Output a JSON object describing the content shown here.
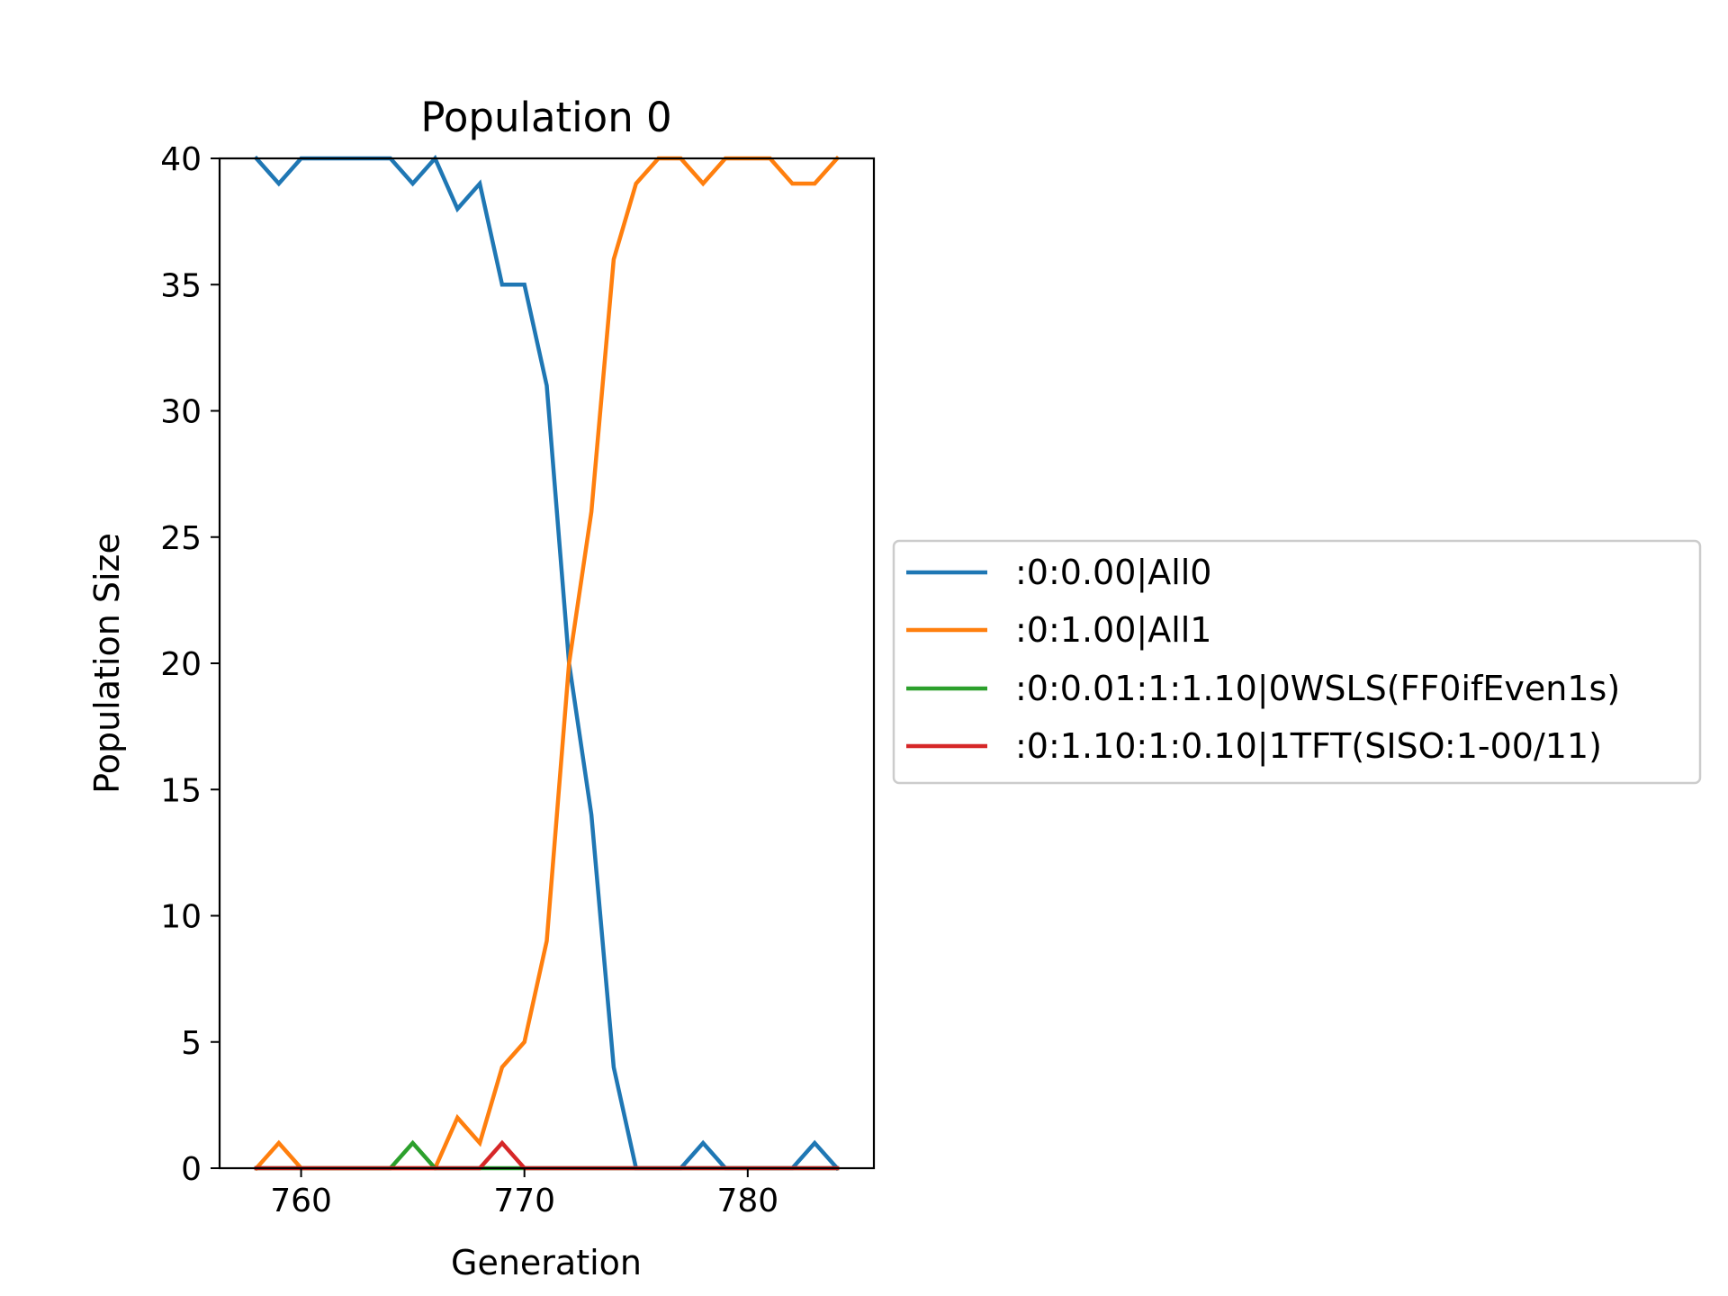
{
  "chart_data": {
    "type": "line",
    "title": "Population 0",
    "xlabel": "Generation",
    "ylabel": "Population Size",
    "xlim": [
      756.35,
      785.65
    ],
    "ylim": [
      0,
      40
    ],
    "xticks": [
      760,
      770,
      780
    ],
    "yticks": [
      0,
      5,
      10,
      15,
      20,
      25,
      30,
      35,
      40
    ],
    "grid": false,
    "legend_placement": "right-outside",
    "x": [
      758,
      759,
      760,
      761,
      762,
      763,
      764,
      765,
      766,
      767,
      768,
      769,
      770,
      771,
      772,
      773,
      774,
      775,
      776,
      777,
      778,
      779,
      780,
      781,
      782,
      783,
      784
    ],
    "series": [
      {
        "name": ":0:0.00|All0",
        "color": "#1f77b4",
        "values": [
          40,
          39,
          40,
          40,
          40,
          40,
          40,
          39,
          40,
          38,
          39,
          35,
          35,
          31,
          20,
          14,
          4,
          0,
          0,
          0,
          1,
          0,
          0,
          0,
          0,
          1,
          0
        ]
      },
      {
        "name": ":0:1.00|All1",
        "color": "#ff7f0e",
        "values": [
          0,
          1,
          0,
          0,
          0,
          0,
          0,
          0,
          0,
          2,
          1,
          4,
          5,
          9,
          20,
          26,
          36,
          39,
          40,
          40,
          39,
          40,
          40,
          40,
          39,
          39,
          40
        ]
      },
      {
        "name": ":0:0.01:1:1.10|0WSLS(FF0ifEven1s)",
        "color": "#2ca02c",
        "values": [
          0,
          0,
          0,
          0,
          0,
          0,
          0,
          1,
          0,
          0,
          0,
          0,
          0,
          0,
          0,
          0,
          0,
          0,
          0,
          0,
          0,
          0,
          0,
          0,
          0,
          0,
          0
        ]
      },
      {
        "name": ":0:1.10:1:0.10|1TFT(SISO:1-00/11)",
        "color": "#d62728",
        "values": [
          0,
          0,
          0,
          0,
          0,
          0,
          0,
          0,
          0,
          0,
          0,
          1,
          0,
          0,
          0,
          0,
          0,
          0,
          0,
          0,
          0,
          0,
          0,
          0,
          0,
          0,
          0
        ]
      }
    ]
  }
}
